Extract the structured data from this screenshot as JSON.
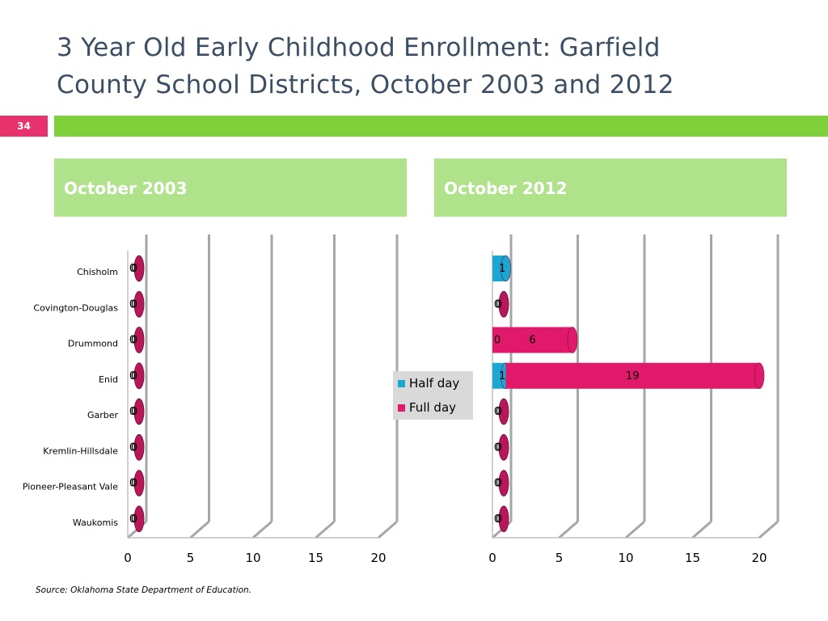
{
  "slide": {
    "title_line1": "3 Year Old Early Childhood Enrollment: Garfield",
    "title_line2": "County School Districts, October 2003 and 2012",
    "page_number": "34",
    "source": "Source:  Oklahoma State Department of Education.",
    "accent_color": "#7fd13b",
    "page_badge_color": "#e8326e"
  },
  "panels": {
    "left": "October 2003",
    "right": "October 2012"
  },
  "legend": {
    "half_day": "Half day",
    "full_day": "Full day"
  },
  "chart_data": [
    {
      "type": "bar",
      "orientation": "horizontal",
      "stacked": true,
      "title": "October 2003",
      "categories": [
        "Chisholm",
        "Covington-Douglas",
        "Drummond",
        "Enid",
        "Garber",
        "Kremlin-Hillsdale",
        "Pioneer-Pleasant Vale",
        "Waukomis"
      ],
      "series": [
        {
          "name": "Half day",
          "color": "#1aa7d4",
          "values": [
            0,
            0,
            0,
            0,
            0,
            0,
            0,
            0
          ]
        },
        {
          "name": "Full day",
          "color": "#e0196a",
          "values": [
            0,
            0,
            0,
            0,
            0,
            0,
            0,
            0
          ]
        }
      ],
      "xlim": [
        0,
        20
      ],
      "xticks": [
        "0",
        "5",
        "10",
        "15",
        "20"
      ],
      "grid": true
    },
    {
      "type": "bar",
      "orientation": "horizontal",
      "stacked": true,
      "title": "October 2012",
      "categories": [
        "Chisholm",
        "Covington-Douglas",
        "Drummond",
        "Enid",
        "Garber",
        "Kremlin-Hillsdale",
        "Pioneer-Pleasant Vale",
        "Waukomis"
      ],
      "series": [
        {
          "name": "Half day",
          "color": "#1aa7d4",
          "values": [
            1,
            0,
            0,
            1,
            0,
            0,
            0,
            0
          ]
        },
        {
          "name": "Full day",
          "color": "#e0196a",
          "values": [
            0,
            0,
            6,
            19,
            0,
            0,
            0,
            0
          ]
        }
      ],
      "xlim": [
        0,
        20
      ],
      "xticks": [
        "0",
        "5",
        "10",
        "15",
        "20"
      ],
      "grid": true,
      "legend": "center-left"
    }
  ]
}
